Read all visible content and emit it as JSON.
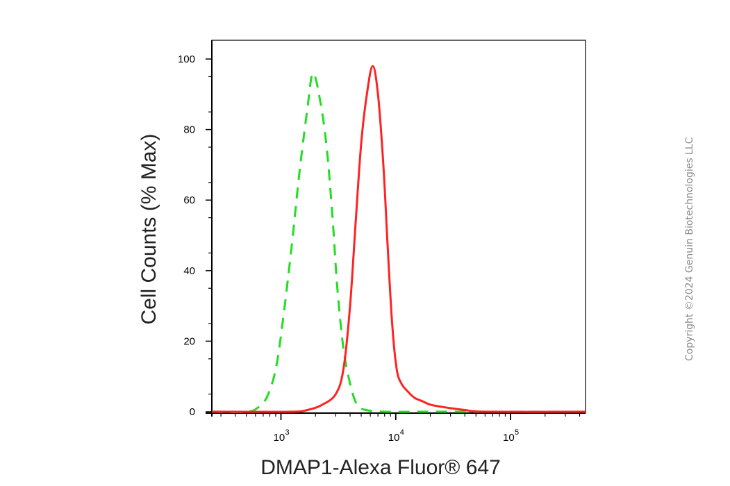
{
  "chart_data": {
    "type": "line",
    "title": "",
    "xlabel": "DMAP1-Alexa Fluor® 647",
    "ylabel": "Cell Counts (% Max)",
    "x_scale": "log",
    "xlim": [
      250,
      450000
    ],
    "ylim": [
      0,
      105
    ],
    "y_ticks": [
      0,
      20,
      40,
      60,
      80,
      100
    ],
    "x_ticks": [
      {
        "value": 1000,
        "base": "10",
        "exp": "3"
      },
      {
        "value": 10000,
        "base": "10",
        "exp": "4"
      },
      {
        "value": 100000,
        "base": "10",
        "exp": "5"
      }
    ],
    "grid": false,
    "series": [
      {
        "color": "#22dd22",
        "style": "dashed",
        "x": [
          250,
          500,
          620,
          750,
          900,
          1050,
          1250,
          1450,
          1700,
          1900,
          2200,
          2500,
          2800,
          3100,
          3500,
          4000,
          4600,
          5500,
          8000,
          20000,
          450000
        ],
        "y": [
          0,
          0,
          1,
          4,
          12,
          27,
          48,
          68,
          86,
          96,
          88,
          75,
          56,
          35,
          18,
          8,
          2,
          0.5,
          0,
          0,
          0
        ]
      },
      {
        "color": "#ff2222",
        "style": "solid",
        "x": [
          250,
          1200,
          1700,
          2300,
          3000,
          3500,
          4000,
          4500,
          5000,
          5600,
          6300,
          7000,
          7800,
          8500,
          9300,
          10200,
          11200,
          12500,
          14500,
          17000,
          20000,
          24000,
          30000,
          40000,
          60000,
          450000
        ],
        "y": [
          0,
          0,
          0.5,
          2,
          5,
          12,
          30,
          55,
          76,
          90,
          98,
          90,
          70,
          47,
          25,
          12,
          8,
          6,
          4,
          3,
          2,
          1.5,
          1,
          0.5,
          0,
          0
        ]
      }
    ]
  },
  "copyright": "Copyright ©2024 Genuin Biotechnologies LLC"
}
